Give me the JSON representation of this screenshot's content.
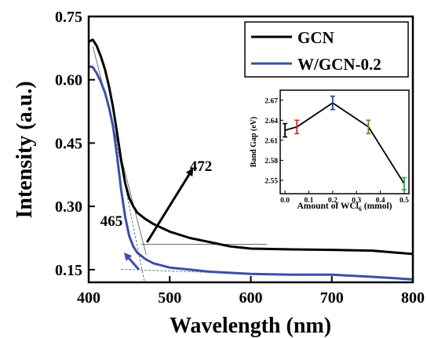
{
  "chart_data": [
    {
      "type": "line",
      "title": "",
      "xlabel": "Wavelength (nm)",
      "ylabel": "Intensity (a.u.)",
      "xlim": [
        400,
        800
      ],
      "ylim": [
        0.12,
        0.75
      ],
      "xticks": [
        400,
        500,
        600,
        700,
        800
      ],
      "yticks": [
        0.15,
        0.3,
        0.45,
        0.6,
        0.75
      ],
      "xtick_labels": [
        "400",
        "500",
        "600",
        "700",
        "800"
      ],
      "ytick_labels": [
        "0.15",
        "0.30",
        "0.45",
        "0.60",
        "0.75"
      ],
      "grid": false,
      "legend_position": "top-right",
      "series": [
        {
          "name": "GCN",
          "color": "#000000",
          "points": [
            [
              400,
              0.69
            ],
            [
              405,
              0.695
            ],
            [
              410,
              0.68
            ],
            [
              415,
              0.655
            ],
            [
              420,
              0.625
            ],
            [
              425,
              0.585
            ],
            [
              430,
              0.535
            ],
            [
              435,
              0.475
            ],
            [
              440,
              0.41
            ],
            [
              445,
              0.355
            ],
            [
              450,
              0.32
            ],
            [
              455,
              0.3
            ],
            [
              460,
              0.285
            ],
            [
              470,
              0.27
            ],
            [
              480,
              0.258
            ],
            [
              500,
              0.24
            ],
            [
              525,
              0.225
            ],
            [
              550,
              0.215
            ],
            [
              575,
              0.205
            ],
            [
              600,
              0.2
            ],
            [
              650,
              0.198
            ],
            [
              700,
              0.197
            ],
            [
              750,
              0.195
            ],
            [
              800,
              0.187
            ]
          ]
        },
        {
          "name": "W/GCN-0.2",
          "color": "#3a4fa8",
          "points": [
            [
              400,
              0.632
            ],
            [
              405,
              0.63
            ],
            [
              410,
              0.615
            ],
            [
              415,
              0.595
            ],
            [
              420,
              0.57
            ],
            [
              425,
              0.535
            ],
            [
              430,
              0.49
            ],
            [
              435,
              0.42
            ],
            [
              440,
              0.34
            ],
            [
              445,
              0.275
            ],
            [
              450,
              0.23
            ],
            [
              455,
              0.205
            ],
            [
              460,
              0.19
            ],
            [
              470,
              0.175
            ],
            [
              480,
              0.165
            ],
            [
              500,
              0.155
            ],
            [
              550,
              0.145
            ],
            [
              600,
              0.14
            ],
            [
              650,
              0.138
            ],
            [
              700,
              0.138
            ],
            [
              750,
              0.133
            ],
            [
              800,
              0.127
            ]
          ]
        }
      ],
      "annotations": [
        {
          "text": "472",
          "color": "#000000",
          "x": 472
        },
        {
          "text": "465",
          "color": "#3a4fa8",
          "x": 465
        }
      ]
    },
    {
      "type": "line",
      "title": "",
      "xlabel": "Amount of WCl",
      "xlabel_subscript": "6",
      "xlabel_suffix": " (mmol)",
      "ylabel": "Band Gap (eV)",
      "xlim": [
        -0.02,
        0.52
      ],
      "ylim": [
        2.53,
        2.685
      ],
      "xticks": [
        0.0,
        0.1,
        0.2,
        0.3,
        0.4,
        0.5
      ],
      "yticks": [
        2.55,
        2.58,
        2.61,
        2.64,
        2.67
      ],
      "xtick_labels": [
        "0.0",
        "0.1",
        "0.2",
        "0.3",
        "0.4",
        "0.5"
      ],
      "ytick_labels": [
        "2.55",
        "2.58",
        "2.61",
        "2.64",
        "2.67"
      ],
      "grid": false,
      "x": [
        0.0,
        0.05,
        0.2,
        0.35,
        0.5
      ],
      "values": [
        2.625,
        2.63,
        2.666,
        2.63,
        2.545
      ],
      "errors": [
        0.01,
        0.01,
        0.01,
        0.01,
        0.009
      ],
      "error_colors": [
        "#000000",
        "#e0231c",
        "#1f3fa8",
        "#5e8a1a",
        "#2aa24a"
      ],
      "line_color": "#000000"
    }
  ]
}
